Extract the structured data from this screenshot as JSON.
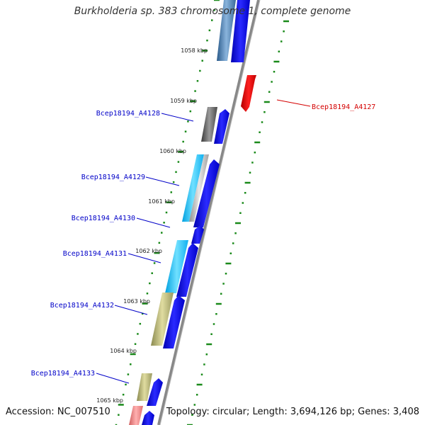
{
  "title": "Burkholderia sp. 383 chromosome 1, complete genome",
  "footer": {
    "accession": "Accession: NC_007510",
    "topology": "Topology: circular; Length: 3,694,126 bp; Genes: 3,408"
  },
  "kbp_labels": [
    "1058 kbp",
    "1059 kbp",
    "1060 kbp",
    "1061 kbp",
    "1062 kbp",
    "1063 kbp",
    "1064 kbp",
    "1065 kbp"
  ],
  "gene_labels": [
    {
      "text": "Bcep18194_A4127",
      "color": "#d40000"
    },
    {
      "text": "Bcep18194_A4128",
      "color": "#0000c8"
    },
    {
      "text": "Bcep18194_A4129",
      "color": "#0000c8"
    },
    {
      "text": "Bcep18194_A4130",
      "color": "#0000c8"
    },
    {
      "text": "Bcep18194_A4131",
      "color": "#0000c8"
    },
    {
      "text": "Bcep18194_A4132",
      "color": "#0000c8"
    },
    {
      "text": "Bcep18194_A4133",
      "color": "#0000c8"
    }
  ],
  "colors": {
    "backbone": "#888888",
    "cds": "#0000ff",
    "reverse_gene": "#ff0000",
    "gc_dots": "#1a8a1a",
    "ticks": "#1a7a1a"
  }
}
